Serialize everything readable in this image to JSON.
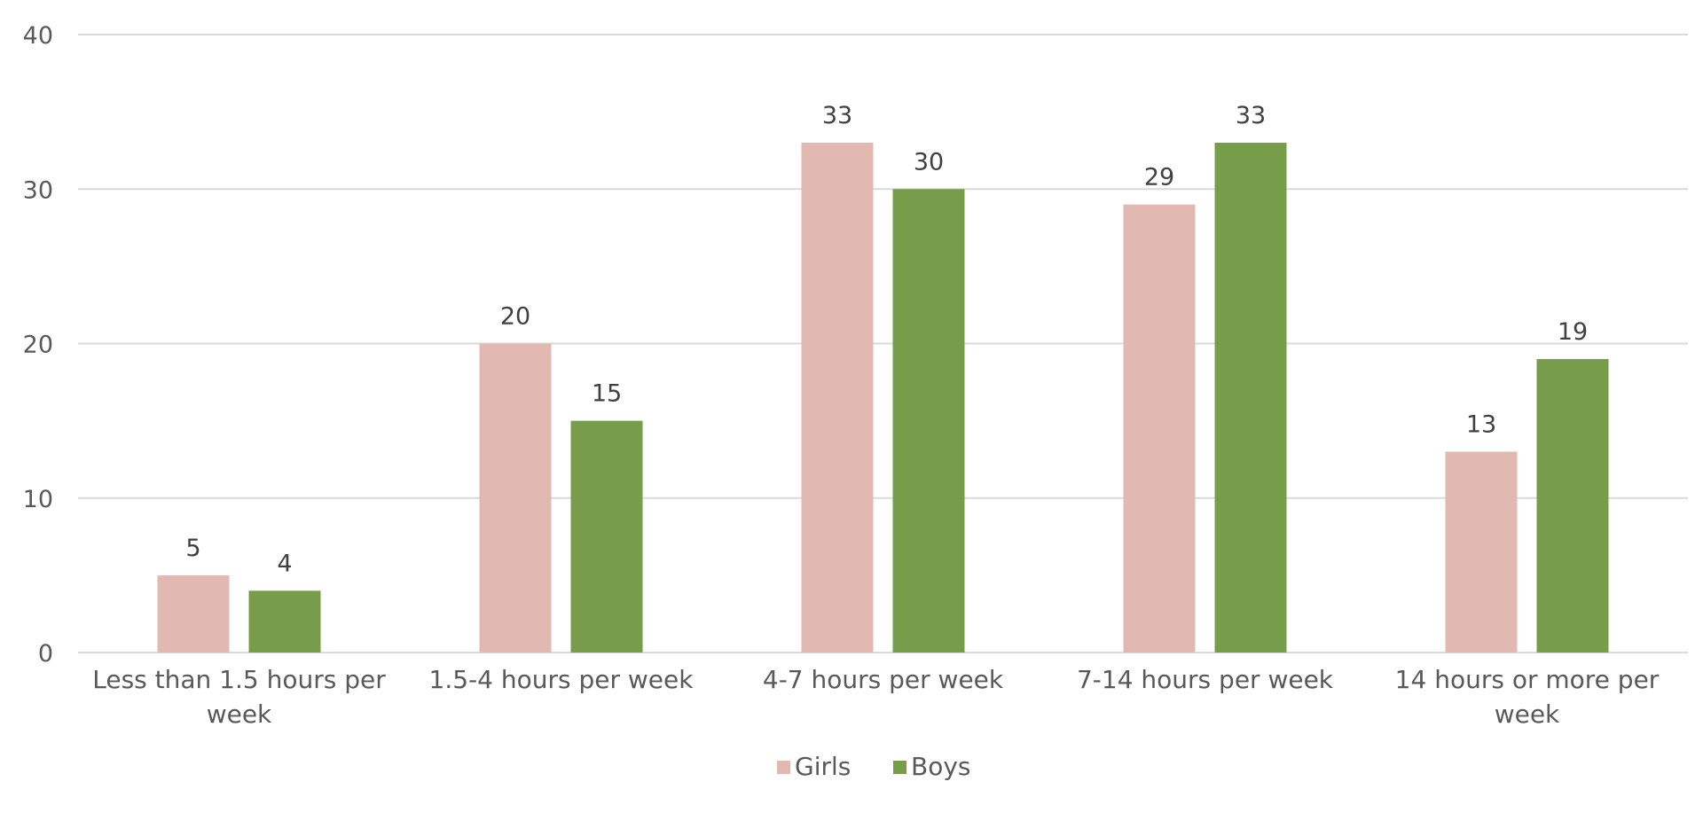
{
  "chart_data": {
    "type": "bar",
    "categories": [
      [
        "Less than 1.5 hours per",
        "week"
      ],
      [
        "1.5-4 hours per week"
      ],
      [
        "4-7 hours per week"
      ],
      [
        "7-14 hours per week"
      ],
      [
        "14 hours or more per",
        "week"
      ]
    ],
    "series": [
      {
        "name": "Girls",
        "color": "#e2b9b1",
        "values": [
          5,
          20,
          33,
          29,
          13
        ]
      },
      {
        "name": "Boys",
        "color": "#789d4a",
        "values": [
          4,
          15,
          30,
          33,
          19
        ]
      }
    ],
    "y_ticks": [
      "0",
      "10",
      "20",
      "30",
      "40"
    ],
    "ylim": [
      0,
      40
    ],
    "grid": true,
    "legend_position": "bottom-center",
    "title": "",
    "xlabel": "",
    "ylabel": "",
    "colors": {
      "grid": "#d9d9d9",
      "axis": "#d9d9d9",
      "text": "#595959",
      "data_label": "#404040"
    }
  }
}
